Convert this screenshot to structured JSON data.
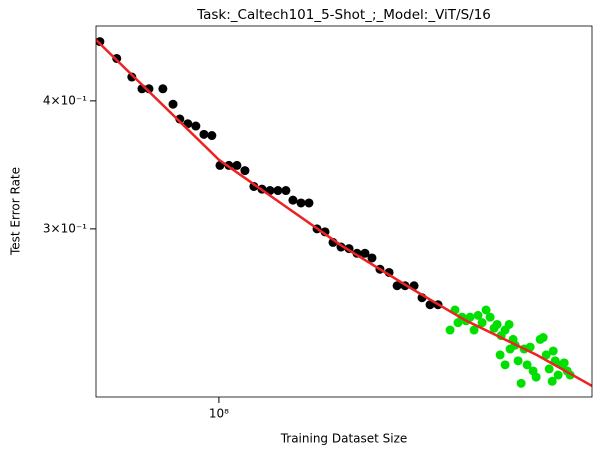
{
  "chart_data": {
    "type": "scatter",
    "title": "Task:_Caltech101_5-Shot_;_Model:_ViT/S/16",
    "x_label": "Training Dataset Size",
    "y_label": "Test Error Rate",
    "xscale": "log",
    "yscale": "log",
    "xlim": [
      50000000.0,
      820000000.0
    ],
    "ylim": [
      0.2056,
      0.4733
    ],
    "xticks": [
      {
        "value": 100000000.0,
        "label": "10⁸"
      }
    ],
    "yticks": [
      {
        "value": 0.3,
        "label": "3×10⁻¹"
      },
      {
        "value": 0.4,
        "label": "4×10⁻¹"
      }
    ],
    "series": [
      {
        "type": "scatter",
        "color": "#000000",
        "x": [
          51100000.0,
          56200000.0,
          61200000.0,
          64800000.0,
          67400000.0,
          72900000.0,
          77200000.0,
          80200000.0,
          83900000.0,
          87800000.0,
          91900000.0,
          96100000.0,
          100600000.0,
          105800000.0,
          110700000.0,
          115800000.0,
          121800000.0,
          127500000.0,
          133400000.0,
          139500000.0,
          145900000.0,
          151800000.0,
          158900000.0,
          166200000.0,
          173900000.0,
          181900000.0,
          190300000.0,
          199100000.0,
          208300000.0,
          217900000.0,
          227900000.0,
          237100000.0,
          248000000.0,
          261100000.0,
          273200000.0,
          285700000.0,
          300600000.0,
          314400000.0,
          329000000.0,
          344100000.0
        ],
        "y": [
          0.457,
          0.44,
          0.422,
          0.411,
          0.411,
          0.411,
          0.397,
          0.384,
          0.38,
          0.378,
          0.371,
          0.37,
          0.346,
          0.346,
          0.346,
          0.342,
          0.33,
          0.328,
          0.327,
          0.327,
          0.327,
          0.32,
          0.318,
          0.318,
          0.3,
          0.298,
          0.291,
          0.288,
          0.287,
          0.284,
          0.284,
          0.281,
          0.274,
          0.272,
          0.264,
          0.264,
          0.264,
          0.257,
          0.253,
          0.253
        ]
      },
      {
        "type": "scatter",
        "color": "#00e000",
        "x": [
          368300000.0,
          378700000.0,
          385200000.0,
          394000000.0,
          403000000.0,
          412200000.0,
          421700000.0,
          431300000.0,
          441200000.0,
          451200000.0,
          461600000.0,
          472100000.0,
          480200000.0,
          491200000.0,
          502300000.0,
          513800000.0,
          525500000.0,
          488400000.0,
          502300000.0,
          516700000.0,
          531500000.0,
          540500000.0,
          549800000.0,
          559200000.0,
          568700000.0,
          578500000.0,
          588300000.0,
          598400000.0,
          612100000.0,
          622600000.0,
          633300000.0,
          644100000.0,
          655200000.0,
          666200000.0,
          677700000.0,
          689100000.0,
          701000000.0,
          712900000.0,
          725100000.0,
          658900000.0
        ],
        "y": [
          0.239,
          0.25,
          0.243,
          0.246,
          0.244,
          0.246,
          0.239,
          0.247,
          0.243,
          0.25,
          0.246,
          0.24,
          0.242,
          0.236,
          0.239,
          0.242,
          0.234,
          0.226,
          0.221,
          0.229,
          0.231,
          0.223,
          0.212,
          0.229,
          0.221,
          0.23,
          0.218,
          0.215,
          0.234,
          0.235,
          0.226,
          0.219,
          0.213,
          0.223,
          0.216,
          0.221,
          0.222,
          0.218,
          0.216,
          0.228
        ]
      },
      {
        "type": "line",
        "color": "#ee2222",
        "x": [
          50000000.0,
          100000000.0,
          200000000.0,
          300000000.0,
          400000000.0,
          600000000.0,
          820000000.0
        ],
        "y": [
          0.4588,
          0.3504,
          0.2888,
          0.2615,
          0.2445,
          0.226,
          0.2108
        ]
      }
    ]
  }
}
